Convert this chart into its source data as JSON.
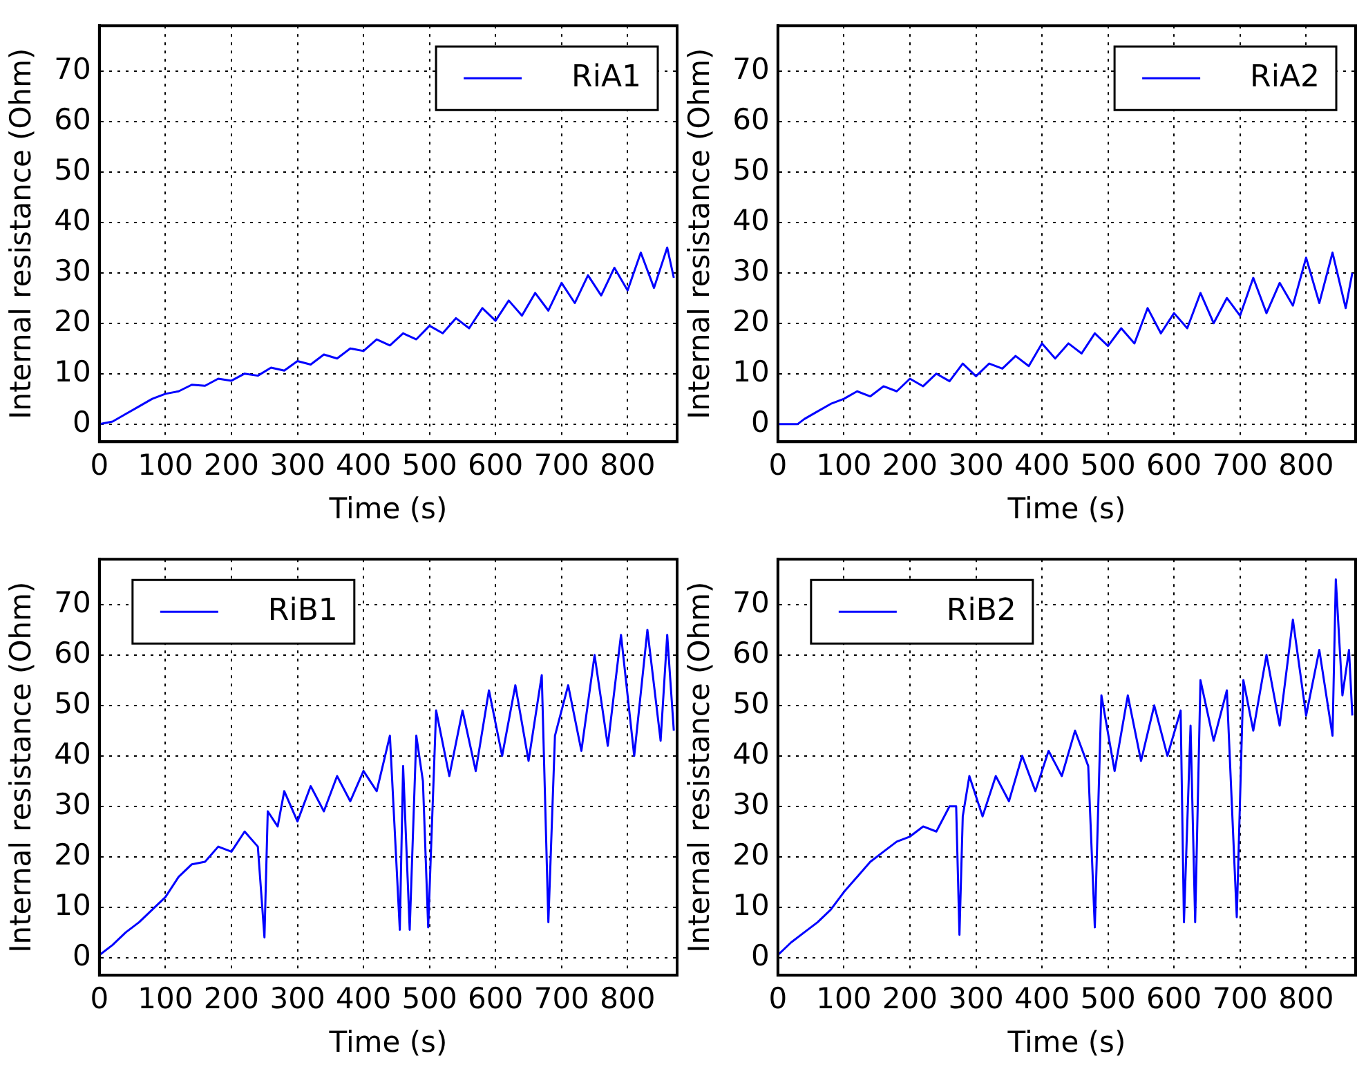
{
  "chart_data": [
    {
      "type": "line",
      "xlabel": "Time (s)",
      "ylabel": "Internal resistance (Ohm)",
      "xlim": [
        0,
        875
      ],
      "xticks": [
        0,
        100,
        200,
        300,
        400,
        500,
        600,
        700,
        800
      ],
      "ylim": [
        -3.5,
        79
      ],
      "yticks": [
        0,
        10,
        20,
        30,
        40,
        50,
        60,
        70
      ],
      "grid": true,
      "legend": "top right",
      "series": [
        {
          "name": "RiA1",
          "color": "#0000ff",
          "x": [
            0,
            20,
            40,
            60,
            80,
            100,
            120,
            140,
            160,
            180,
            200,
            220,
            240,
            260,
            280,
            300,
            320,
            340,
            360,
            380,
            400,
            420,
            440,
            460,
            480,
            500,
            520,
            540,
            560,
            580,
            600,
            620,
            640,
            660,
            680,
            700,
            720,
            740,
            760,
            780,
            800,
            820,
            840,
            860,
            870
          ],
          "values": [
            0,
            0.5,
            2,
            3.5,
            5,
            6,
            6.5,
            7.8,
            7.6,
            9,
            8.6,
            10,
            9.6,
            11.2,
            10.6,
            12.5,
            11.8,
            13.8,
            13,
            15,
            14.5,
            16.8,
            15.6,
            18,
            16.8,
            19.5,
            18,
            21,
            19,
            23,
            20.5,
            24.5,
            21.5,
            26,
            22.5,
            28,
            24,
            29.5,
            25.5,
            31,
            26.5,
            34,
            27,
            35,
            29
          ]
        }
      ]
    },
    {
      "type": "line",
      "xlabel": "Time (s)",
      "ylabel": "Internal resistance (Ohm)",
      "xlim": [
        0,
        875
      ],
      "xticks": [
        0,
        100,
        200,
        300,
        400,
        500,
        600,
        700,
        800
      ],
      "ylim": [
        -3.5,
        79
      ],
      "yticks": [
        0,
        10,
        20,
        30,
        40,
        50,
        60,
        70
      ],
      "grid": true,
      "legend": "top right",
      "series": [
        {
          "name": "RiA2",
          "color": "#0000ff",
          "x": [
            0,
            20,
            30,
            40,
            60,
            80,
            100,
            120,
            140,
            160,
            180,
            200,
            220,
            240,
            260,
            280,
            300,
            320,
            340,
            360,
            380,
            400,
            420,
            440,
            460,
            480,
            500,
            520,
            540,
            560,
            580,
            600,
            620,
            640,
            660,
            680,
            700,
            720,
            740,
            760,
            780,
            800,
            820,
            840,
            860,
            870
          ],
          "values": [
            0,
            0,
            0,
            1,
            2.5,
            4,
            5,
            6.5,
            5.5,
            7.5,
            6.5,
            9,
            7.5,
            10,
            8.5,
            12,
            9.5,
            12,
            11,
            13.5,
            11.5,
            16,
            13,
            16,
            14,
            18,
            15.5,
            19,
            16,
            23,
            18,
            22,
            19,
            26,
            20,
            25,
            21.5,
            29,
            22,
            28,
            23.5,
            33,
            24,
            34,
            23,
            30
          ]
        }
      ]
    },
    {
      "type": "line",
      "xlabel": "Time (s)",
      "ylabel": "Internal resistance (Ohm)",
      "xlim": [
        0,
        875
      ],
      "xticks": [
        0,
        100,
        200,
        300,
        400,
        500,
        600,
        700,
        800
      ],
      "ylim": [
        -3.5,
        79
      ],
      "yticks": [
        0,
        10,
        20,
        30,
        40,
        50,
        60,
        70
      ],
      "grid": true,
      "legend": "top left",
      "series": [
        {
          "name": "RiB1",
          "color": "#0000ff",
          "x": [
            0,
            20,
            40,
            60,
            80,
            100,
            120,
            140,
            160,
            180,
            200,
            220,
            240,
            250,
            255,
            270,
            280,
            300,
            320,
            340,
            360,
            380,
            400,
            420,
            440,
            455,
            460,
            470,
            480,
            490,
            498,
            510,
            530,
            550,
            570,
            590,
            610,
            630,
            650,
            670,
            680,
            690,
            710,
            730,
            750,
            770,
            790,
            810,
            830,
            850,
            860,
            870
          ],
          "values": [
            0.5,
            2.5,
            5,
            7,
            9.5,
            12,
            16,
            18.5,
            19,
            22,
            21,
            25,
            22,
            4,
            29,
            26,
            33,
            27,
            34,
            29,
            36,
            31,
            37,
            33,
            44,
            5.5,
            38,
            5.5,
            44,
            35,
            6,
            49,
            36,
            49,
            37,
            53,
            40,
            54,
            39,
            56,
            7,
            44,
            54,
            41,
            60,
            42,
            64,
            40,
            65,
            43,
            64,
            45
          ]
        }
      ]
    },
    {
      "type": "line",
      "xlabel": "Time (s)",
      "ylabel": "Internal resistance (Ohm)",
      "xlim": [
        0,
        875
      ],
      "xticks": [
        0,
        100,
        200,
        300,
        400,
        500,
        600,
        700,
        800
      ],
      "ylim": [
        -3.5,
        79
      ],
      "yticks": [
        0,
        10,
        20,
        30,
        40,
        50,
        60,
        70
      ],
      "grid": true,
      "legend": "top left",
      "series": [
        {
          "name": "RiB2",
          "color": "#0000ff",
          "x": [
            0,
            20,
            40,
            60,
            80,
            100,
            120,
            140,
            160,
            180,
            200,
            220,
            240,
            260,
            270,
            275,
            280,
            290,
            310,
            330,
            350,
            370,
            390,
            410,
            430,
            450,
            470,
            480,
            490,
            510,
            530,
            550,
            570,
            590,
            610,
            615,
            625,
            632,
            640,
            660,
            680,
            695,
            705,
            720,
            740,
            760,
            780,
            800,
            820,
            840,
            845,
            855,
            865,
            870
          ],
          "values": [
            0.5,
            3,
            5,
            7,
            9.5,
            13,
            16,
            19,
            21,
            23,
            24,
            26,
            25,
            30,
            30,
            4.5,
            28,
            36,
            28,
            36,
            31,
            40,
            33,
            41,
            36,
            45,
            38,
            6,
            52,
            37,
            52,
            39,
            50,
            40,
            49,
            7,
            46,
            7,
            55,
            43,
            53,
            8,
            55,
            45,
            60,
            46,
            67,
            48,
            61,
            44,
            75,
            52,
            61,
            48
          ]
        }
      ]
    }
  ]
}
